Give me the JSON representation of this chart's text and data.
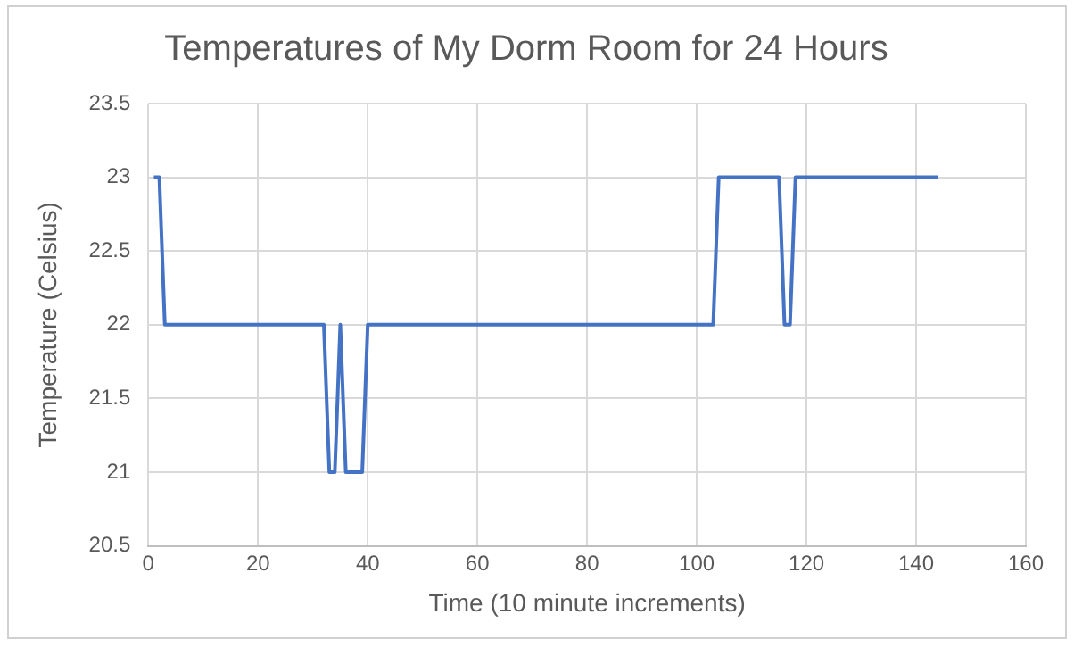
{
  "chart_data": {
    "type": "line",
    "title": "Temperatures of My Dorm Room for 24 Hours",
    "xlabel": "Time (10 minute increments)",
    "ylabel": "Temperature (Celsius)",
    "series": [
      {
        "color": "#4472c4",
        "x": [
          1,
          2,
          3,
          32,
          33,
          34,
          35,
          36,
          39,
          40,
          103,
          104,
          115,
          116,
          117,
          118,
          144
        ],
        "values": [
          23,
          23,
          22,
          22,
          21,
          21,
          22,
          21,
          21,
          22,
          22,
          23,
          23,
          22,
          22,
          23,
          23
        ]
      }
    ],
    "xlim": [
      0,
      160
    ],
    "xticks": [
      0,
      20,
      40,
      60,
      80,
      100,
      120,
      140,
      160
    ],
    "ylim": [
      20.5,
      23.5
    ],
    "yticks": [
      20.5,
      21,
      21.5,
      22,
      22.5,
      23,
      23.5
    ],
    "grid": true,
    "legend": false,
    "marker": "none",
    "line_style": "solid"
  }
}
